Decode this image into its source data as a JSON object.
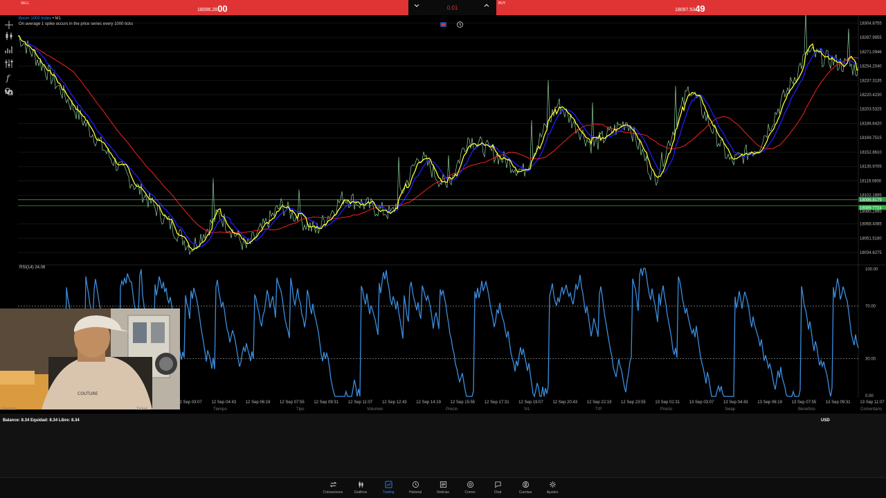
{
  "tradebar": {
    "sell_label": "SELL",
    "sell_price_main": "18096.28",
    "sell_price_big": "00",
    "buy_label": "BUY",
    "buy_price_main": "18097.53",
    "buy_price_big": "49",
    "volume": "0.01"
  },
  "chart": {
    "symbol": "Boom 1000 Index",
    "timeframe": " • M1",
    "description": "On average 1 spike occurs in the price series every 1000 ticks",
    "price_ticks": [
      "18304.8755",
      "18287.9855",
      "18271.0946",
      "18254.2040",
      "18237.3135",
      "18220.4230",
      "18203.5325",
      "18186.6420",
      "18169.7515",
      "18152.8610",
      "18135.9705",
      "18119.0800",
      "18102.1895",
      "18068.4085",
      "18051.5180",
      "18034.6275"
    ],
    "current_bid": "18096.8179",
    "current_ask": "18089.7724",
    "current_mid": "18085.2995",
    "rsi_label": "RSI(14) 24.06",
    "rsi_ticks": [
      "100.00",
      "70.00",
      "30.00",
      "0.00"
    ],
    "time_ticks": [
      "12 Sep 03:07",
      "12 Sep 04:43",
      "12 Sep 06:19",
      "12 Sep 07:55",
      "12 Sep 09:31",
      "12 Sep 11:07",
      "12 Sep 12:43",
      "12 Sep 14:19",
      "12 Sep 15:55",
      "12 Sep 17:31",
      "12 Sep 19:07",
      "12 Sep 20:43",
      "12 Sep 22:19",
      "12 Sep 23:55",
      "13 Sep 01:31",
      "13 Sep 03:07",
      "13 Sep 04:43",
      "13 Sep 06:19",
      "13 Sep 07:55",
      "13 Sep 09:31",
      "13 Sep 11:07"
    ],
    "timeframe_button": "M1"
  },
  "columns": [
    "Símbolo",
    "Ticket",
    "Tiempo",
    "Tipo",
    "Volumen",
    "Precio",
    "S/L",
    "T/P",
    "Precio",
    "Swap",
    "Beneficio",
    "Comentario"
  ],
  "account": {
    "balance_line": "Balance: 8.34  Equidad: 8.34  Libre: 8.34",
    "currency": "USD"
  },
  "nav": [
    {
      "label": "Cotizaciones",
      "icon": "quotes-icon"
    },
    {
      "label": "Gráficos",
      "icon": "chart-icon"
    },
    {
      "label": "Trading",
      "icon": "trading-icon"
    },
    {
      "label": "Historial",
      "icon": "history-icon"
    },
    {
      "label": "Noticias",
      "icon": "news-icon"
    },
    {
      "label": "Correo",
      "icon": "mail-icon"
    },
    {
      "label": "Chat",
      "icon": "chat-icon"
    },
    {
      "label": "Cuentas",
      "icon": "account-icon"
    },
    {
      "label": "Ajustes",
      "icon": "settings-icon"
    }
  ],
  "colors": {
    "sell": "#e03434",
    "buy": "#e03434",
    "price": "#8fd19e",
    "ma_fast": "#ffff33",
    "ma_mid": "#1e1eff",
    "ma_slow": "#e02020",
    "rsi": "#3b8fe0",
    "active_nav": "#3b82f6"
  }
}
